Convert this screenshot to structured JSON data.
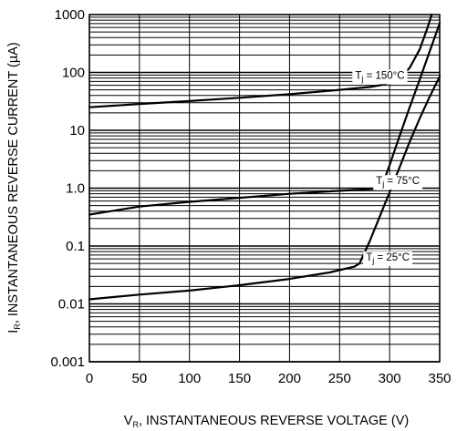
{
  "chart_data": {
    "type": "line",
    "title": "",
    "xlabel": {
      "main": "V",
      "sub": "R",
      "rest": ", INSTANTANEOUS REVERSE VOLTAGE (V)"
    },
    "ylabel": {
      "main": "I",
      "sub": "R",
      "rest": ", INSTANTANEOUS REVERSE CURRENT (µA)"
    },
    "x_scale": "linear",
    "y_scale": "log",
    "xlim": [
      0,
      350
    ],
    "ylim": [
      0.001,
      1000
    ],
    "x_ticks": [
      0,
      50,
      100,
      150,
      200,
      250,
      300,
      350
    ],
    "x_tick_labels": [
      "0",
      "50",
      "100",
      "150",
      "200",
      "250",
      "300",
      "350"
    ],
    "y_ticks": [
      0.001,
      0.01,
      0.1,
      1,
      10,
      100,
      1000
    ],
    "y_tick_labels": [
      "0.001",
      "0.01",
      "0.1",
      "1.0",
      "10",
      "100",
      "1000"
    ],
    "grid": true,
    "line_color": "#000000",
    "grid_color": "#000000",
    "series": [
      {
        "label": {
          "main": "T",
          "sub": "j",
          "rest": " = 150°C"
        },
        "label_at": [
          315,
          90
        ],
        "points": [
          [
            0,
            25
          ],
          [
            50,
            28.5
          ],
          [
            100,
            32
          ],
          [
            150,
            36.5
          ],
          [
            200,
            42
          ],
          [
            250,
            50
          ],
          [
            280,
            56
          ],
          [
            295,
            62
          ],
          [
            310,
            80
          ],
          [
            320,
            120
          ],
          [
            330,
            250
          ],
          [
            338,
            600
          ],
          [
            342,
            1000
          ]
        ]
      },
      {
        "label": {
          "main": "T",
          "sub": "j",
          "rest": " = 75°C"
        },
        "label_at": [
          330,
          1.35
        ],
        "points": [
          [
            0,
            0.35
          ],
          [
            50,
            0.48
          ],
          [
            100,
            0.58
          ],
          [
            150,
            0.68
          ],
          [
            200,
            0.8
          ],
          [
            250,
            0.9
          ],
          [
            285,
            0.97
          ],
          [
            292,
            1.05
          ],
          [
            300,
            2.5
          ],
          [
            310,
            8
          ],
          [
            320,
            25
          ],
          [
            330,
            75
          ],
          [
            340,
            230
          ],
          [
            346,
            450
          ],
          [
            350,
            700
          ]
        ]
      },
      {
        "label": {
          "main": "T",
          "sub": "j",
          "rest": " = 25°C"
        },
        "label_at": [
          320,
          0.065
        ],
        "points": [
          [
            0,
            0.012
          ],
          [
            50,
            0.0145
          ],
          [
            100,
            0.017
          ],
          [
            150,
            0.021
          ],
          [
            200,
            0.027
          ],
          [
            240,
            0.035
          ],
          [
            265,
            0.044
          ],
          [
            270,
            0.05
          ],
          [
            280,
            0.12
          ],
          [
            290,
            0.32
          ],
          [
            300,
            0.85
          ],
          [
            310,
            2.3
          ],
          [
            320,
            6.3
          ],
          [
            330,
            16
          ],
          [
            340,
            38
          ],
          [
            350,
            85
          ]
        ]
      }
    ]
  }
}
